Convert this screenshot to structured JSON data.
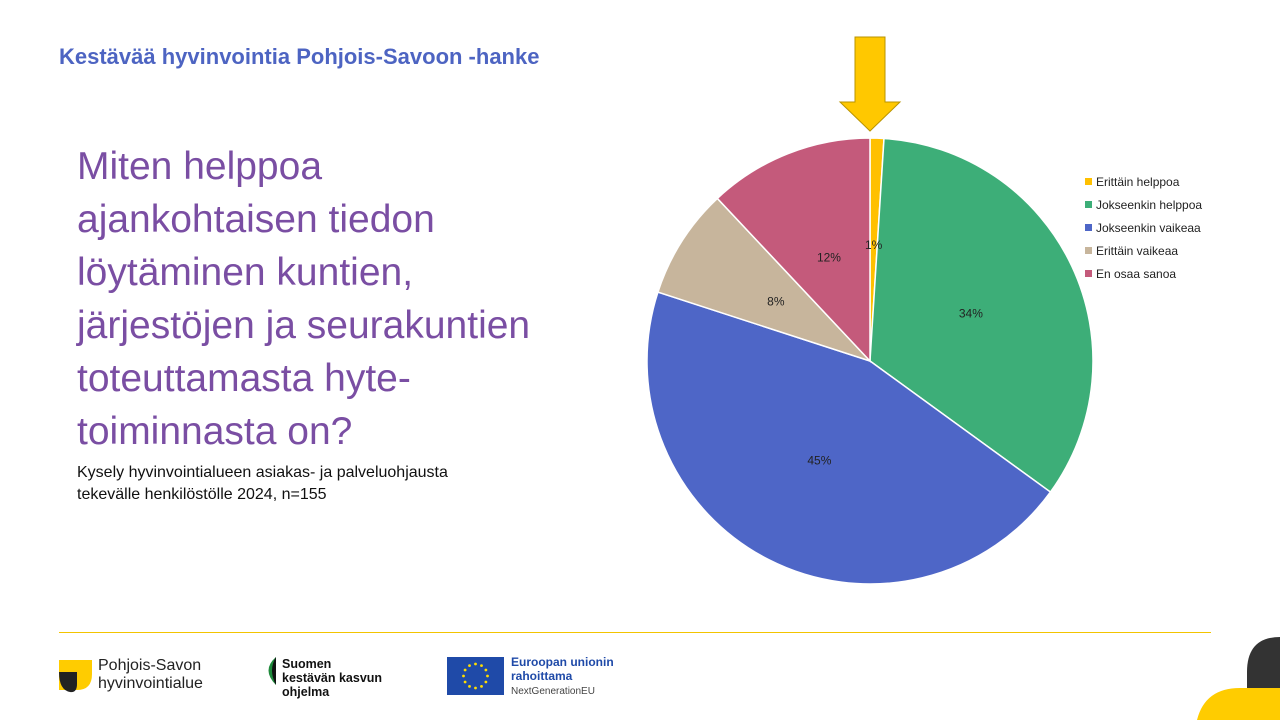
{
  "header": {
    "title": "Kestävää hyvinvointia Pohjois-Savoon -hanke"
  },
  "question": "Miten helppoa\najankohtaisen tiedon\nlöytäminen kuntien,\njärjestöjen ja seurakuntien\ntoteuttamasta hyte-\ntoiminnasta on?",
  "subtitle": "Kysely hyvinvointialueen asiakas- ja palveluohjausta\ntekevälle henkilöstölle 2024, n=155",
  "chart_data": {
    "type": "pie",
    "title": "",
    "legend_position": "right",
    "series": [
      {
        "name": "Erittäin helppoa",
        "value": 1,
        "label": "1%",
        "color": "#ffc000"
      },
      {
        "name": "Jokseenkin helppoa",
        "value": 34,
        "label": "34%",
        "color": "#3dae78"
      },
      {
        "name": "Jokseenkin vaikeaa",
        "value": 45,
        "label": "45%",
        "color": "#4e66c7"
      },
      {
        "name": "Erittäin vaikeaa",
        "value": 8,
        "label": "8%",
        "color": "#c7b59c"
      },
      {
        "name": "En osaa sanoa",
        "value": 12,
        "label": "12%",
        "color": "#c45a7b"
      }
    ],
    "annotation": {
      "type": "arrow",
      "points_to": "Erittäin helppoa",
      "color": "#ffc800"
    }
  },
  "footer": {
    "logo1": "Pohjois-Savon\nhyvinvointialue",
    "logo2": "Suomen\nkestävän kasvun\nohjelma",
    "logo3_title": "Euroopan unionin\nrahoittama",
    "logo3_sub": "NextGenerationEU"
  },
  "colors": {
    "accent_blue": "#4d64c2",
    "question_purple": "#7a4ea3",
    "brand_yellow": "#ffcc00",
    "eu_blue": "#1f4aa8"
  }
}
